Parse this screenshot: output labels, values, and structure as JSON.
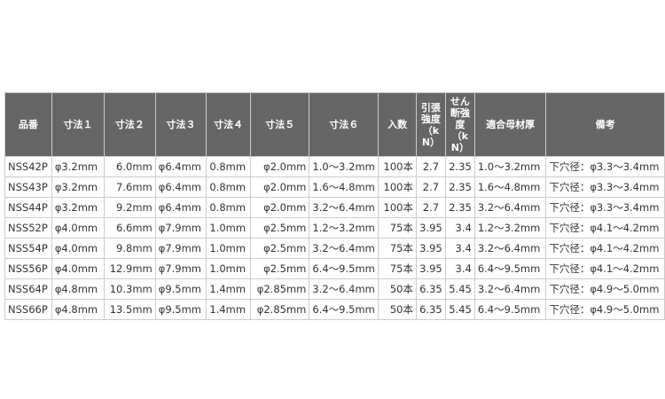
{
  "headers": [
    "品番",
    "寸法１",
    "寸法２",
    "寸法３",
    "寸法４",
    "寸法５",
    "寸法６",
    "入数",
    "引張強度（kN）",
    "せん断強度（kN）",
    "適合母材厚",
    "備考"
  ],
  "rows": [
    [
      "NSS42P",
      "φ3.2mm",
      "6.0mm",
      "φ6.4mm",
      "0.8mm",
      "φ2.0mm",
      "1.0～3.2mm",
      "100本",
      "2.7",
      "2.35",
      "1.0～3.2mm",
      "下穴径：φ3.3～3.4mm"
    ],
    [
      "NSS43P",
      "φ3.2mm",
      "7.6mm",
      "φ6.4mm",
      "0.8mm",
      "φ2.0mm",
      "1.6～4.8mm",
      "100本",
      "2.7",
      "2.35",
      "1.6～4.8mm",
      "下穴径：φ3.3～3.4mm"
    ],
    [
      "NSS44P",
      "φ3.2mm",
      "9.2mm",
      "φ6.4mm",
      "0.8mm",
      "φ2.0mm",
      "3.2～6.4mm",
      "100本",
      "2.7",
      "2.35",
      "3.2～6.4mm",
      "下穴径：φ3.3～3.4mm"
    ],
    [
      "NSS52P",
      "φ4.0mm",
      "6.6mm",
      "φ7.9mm",
      "1.0mm",
      "φ2.5mm",
      "1.2～3.2mm",
      "75本",
      "3.95",
      "3.4",
      "1.2～3.2mm",
      "下穴径：φ4.1～4.2mm"
    ],
    [
      "NSS54P",
      "φ4.0mm",
      "9.8mm",
      "φ7.9mm",
      "1.0mm",
      "φ2.5mm",
      "3.2～6.4mm",
      "75本",
      "3.95",
      "3.4",
      "3.2～6.4mm",
      "下穴径：φ4.1～4.2mm"
    ],
    [
      "NSS56P",
      "φ4.0mm",
      "12.9mm",
      "φ7.9mm",
      "1.0mm",
      "φ2.5mm",
      "6.4～9.5mm",
      "75本",
      "3.95",
      "3.4",
      "6.4～9.5mm",
      "下穴径：φ4.1～4.2mm"
    ],
    [
      "NSS64P",
      "φ4.8mm",
      "10.3mm",
      "φ9.5mm",
      "1.4mm",
      "φ2.85mm",
      "3.2～6.4mm",
      "50本",
      "6.35",
      "5.45",
      "3.2～6.4mm",
      "下穴径：φ4.9～5.0mm"
    ],
    [
      "NSS66P",
      "φ4.8mm",
      "13.5mm",
      "φ9.5mm",
      "1.4mm",
      "φ2.85mm",
      "6.4～9.5mm",
      "50本",
      "6.35",
      "5.45",
      "6.4～9.5mm",
      "下穴径：φ4.9～5.0mm"
    ]
  ]
}
